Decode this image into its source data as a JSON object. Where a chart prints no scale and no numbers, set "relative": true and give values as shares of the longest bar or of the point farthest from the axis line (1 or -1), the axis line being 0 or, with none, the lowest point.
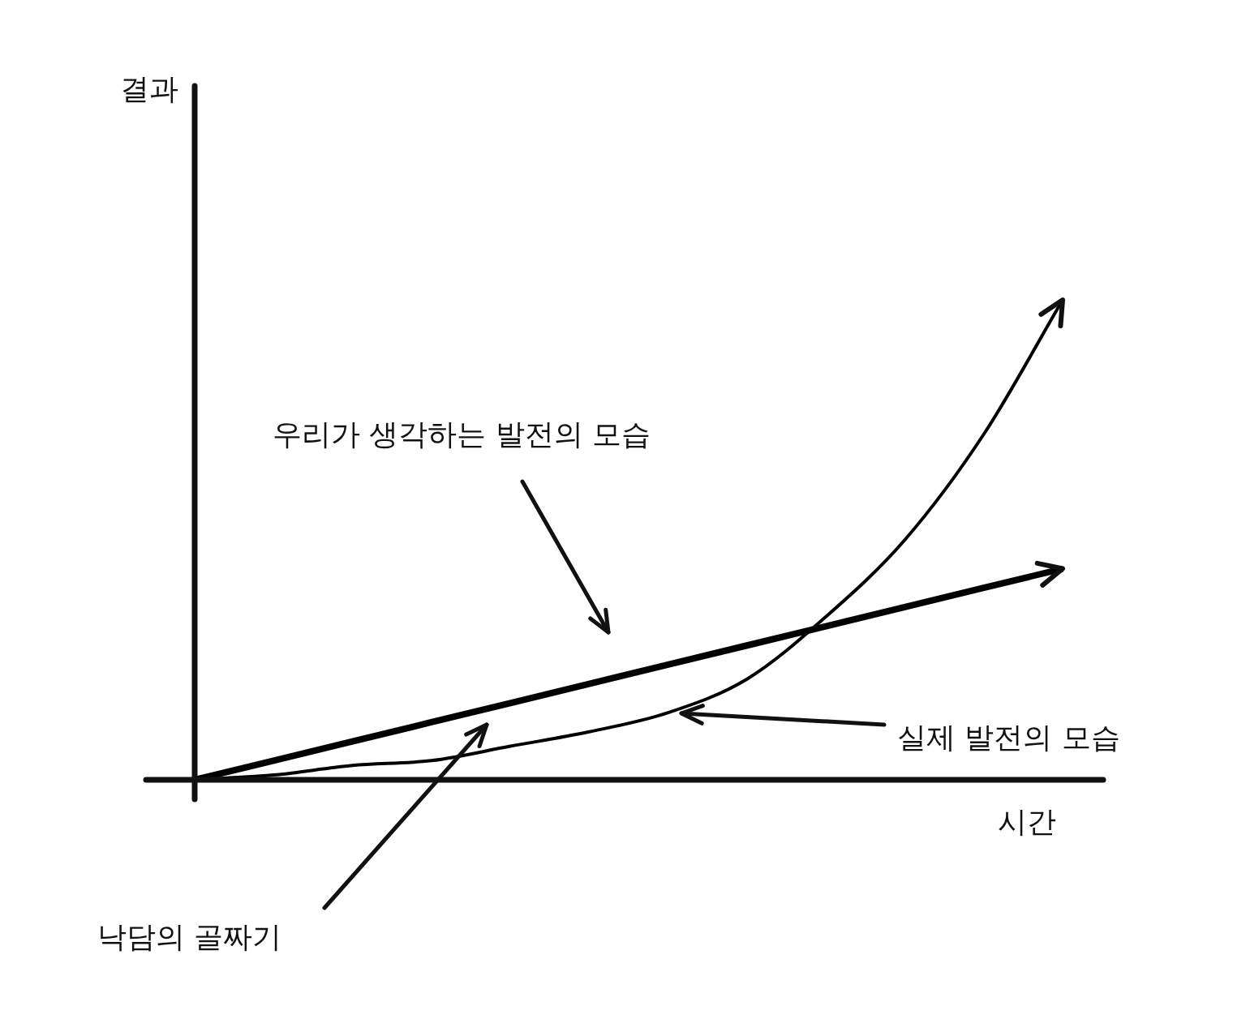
{
  "chart_data": {
    "type": "line",
    "xlabel": "시간",
    "categories": [
      null,
      null,
      null,
      null,
      null,
      null,
      null,
      null,
      null,
      null,
      null,
      null
    ],
    "relative": true,
    "marker": "none",
    "line_style": "solid",
    "annotations": [
      "우리가 생각하는 발전의 모습",
      "실제 발전의 모습",
      "낙담의 골짜기",
      "결과"
    ],
    "series": [
      {
        "color": "#000000",
        "values": [
          0,
          0.04,
          0.08,
          0.12,
          0.16,
          0.2,
          0.24,
          0.28,
          0.32,
          0.36,
          0.4,
          0.44
        ]
      },
      {
        "color": "#000000",
        "values": [
          0,
          0.01,
          0.03,
          0.04,
          0.07,
          0.1,
          0.14,
          0.21,
          0.34,
          0.5,
          0.72,
          1
        ]
      }
    ]
  }
}
